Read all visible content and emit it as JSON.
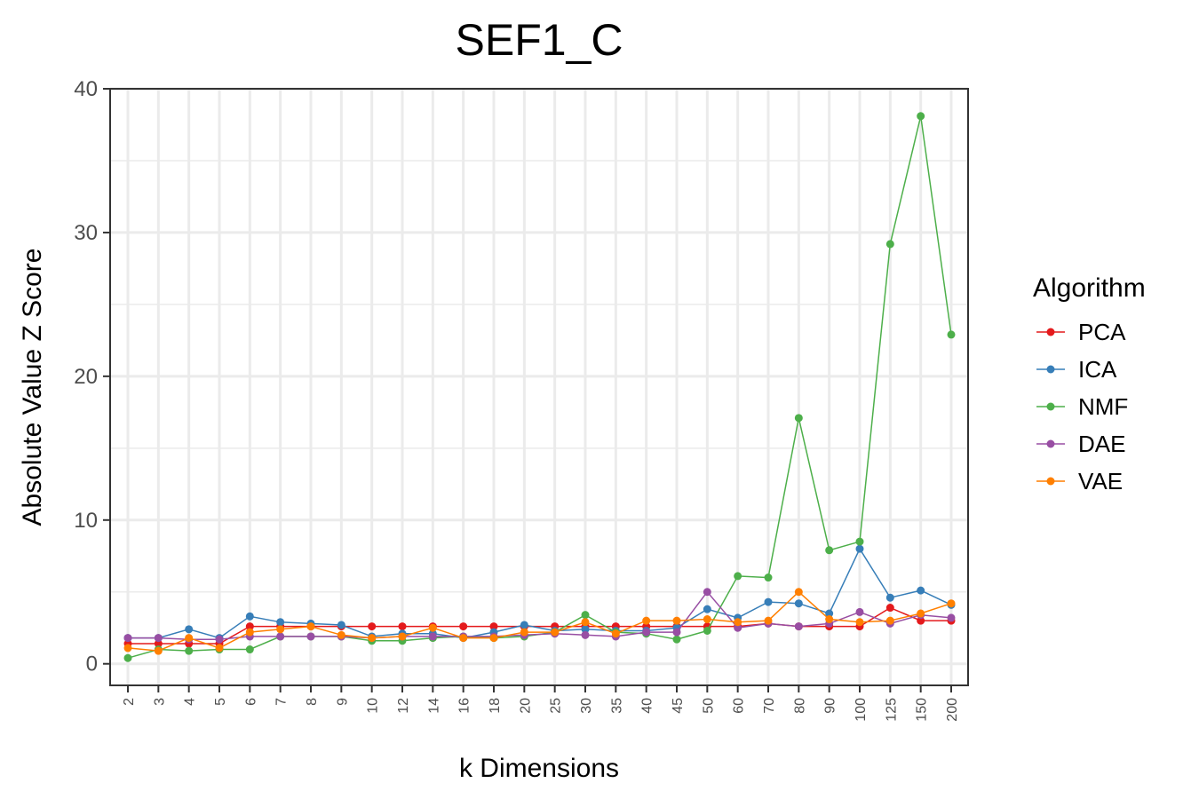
{
  "chart_data": {
    "type": "line",
    "title": "SEF1_C",
    "xlabel": "k Dimensions",
    "ylabel": "Absolute Value Z Score",
    "ylim": [
      -1.5,
      40
    ],
    "yticks": [
      0,
      10,
      20,
      30,
      40
    ],
    "grid": true,
    "legend_title": "Algorithm",
    "legend_position": "right",
    "categories": [
      "2",
      "3",
      "4",
      "5",
      "6",
      "7",
      "8",
      "9",
      "10",
      "12",
      "14",
      "16",
      "18",
      "20",
      "25",
      "30",
      "35",
      "40",
      "45",
      "50",
      "60",
      "70",
      "80",
      "90",
      "100",
      "125",
      "150",
      "200"
    ],
    "series": [
      {
        "name": "PCA",
        "color": "#e41a1c",
        "values": [
          1.4,
          1.4,
          1.4,
          1.4,
          2.6,
          2.6,
          2.6,
          2.6,
          2.6,
          2.6,
          2.6,
          2.6,
          2.6,
          2.6,
          2.6,
          2.6,
          2.6,
          2.6,
          2.6,
          2.6,
          2.6,
          2.8,
          2.6,
          2.6,
          2.6,
          3.9,
          3.0,
          3.0
        ]
      },
      {
        "name": "ICA",
        "color": "#377eb8",
        "values": [
          1.8,
          1.8,
          2.4,
          1.8,
          3.3,
          2.9,
          2.8,
          2.7,
          1.9,
          2.1,
          2.1,
          1.8,
          2.2,
          2.7,
          2.3,
          2.4,
          2.3,
          2.3,
          2.5,
          3.8,
          3.2,
          4.3,
          4.2,
          3.5,
          8.0,
          4.6,
          5.1,
          4.1
        ]
      },
      {
        "name": "NMF",
        "color": "#4daf4a",
        "values": [
          0.4,
          1.0,
          0.9,
          1.0,
          1.0,
          1.9,
          1.9,
          1.9,
          1.6,
          1.6,
          1.8,
          1.9,
          1.8,
          1.9,
          2.2,
          3.4,
          2.2,
          2.1,
          1.7,
          2.3,
          6.1,
          6.0,
          17.1,
          7.9,
          8.5,
          29.2,
          38.1,
          22.9
        ]
      },
      {
        "name": "DAE",
        "color": "#984ea3",
        "values": [
          1.8,
          1.8,
          1.7,
          1.7,
          1.9,
          1.9,
          1.9,
          1.9,
          1.8,
          1.9,
          1.9,
          1.9,
          1.9,
          2.0,
          2.1,
          2.0,
          1.9,
          2.2,
          2.2,
          5.0,
          2.5,
          2.8,
          2.6,
          2.8,
          3.6,
          2.8,
          3.4,
          3.2
        ]
      },
      {
        "name": "VAE",
        "color": "#ff7f00",
        "values": [
          1.1,
          0.9,
          1.8,
          1.1,
          2.2,
          2.4,
          2.6,
          2.0,
          1.8,
          1.9,
          2.5,
          1.8,
          1.8,
          2.2,
          2.2,
          2.9,
          2.1,
          3.0,
          3.0,
          3.1,
          2.9,
          3.0,
          5.0,
          3.1,
          2.9,
          3.0,
          3.5,
          4.2
        ]
      }
    ]
  }
}
